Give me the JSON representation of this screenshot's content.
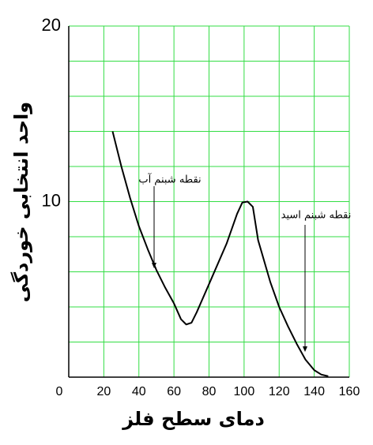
{
  "chart_data": {
    "type": "line",
    "ylabel": "واحد انتخابی خوردگی",
    "xlabel": "دمای سطح فلز",
    "x": [
      25,
      30,
      35,
      40,
      45,
      50,
      55,
      60,
      64,
      67,
      70,
      73,
      80,
      90,
      96,
      99,
      102,
      105,
      108,
      115,
      120,
      125,
      130,
      135,
      140,
      144,
      148
    ],
    "values": [
      14,
      12,
      10.2,
      8.6,
      7.3,
      6.1,
      5.1,
      4.2,
      3.3,
      3.0,
      3.1,
      3.7,
      5.3,
      7.6,
      9.3,
      9.95,
      10,
      9.7,
      7.8,
      5.4,
      4.0,
      2.9,
      1.9,
      1.0,
      0.4,
      0.15,
      0.05
    ],
    "color": "#000000",
    "xlim": [
      0,
      160
    ],
    "xticks": [
      0,
      20,
      40,
      60,
      80,
      100,
      120,
      140,
      160
    ],
    "ylim": [
      0,
      20
    ],
    "yticks": [
      10,
      20
    ],
    "ygrid": [
      0,
      2,
      4,
      6,
      8,
      10,
      12,
      14,
      16,
      18,
      20
    ],
    "grid": true,
    "grid_color": "#33dd44",
    "annotations": [
      "نقطه شبنم آب",
      "نقطه شبنم اسید"
    ]
  }
}
